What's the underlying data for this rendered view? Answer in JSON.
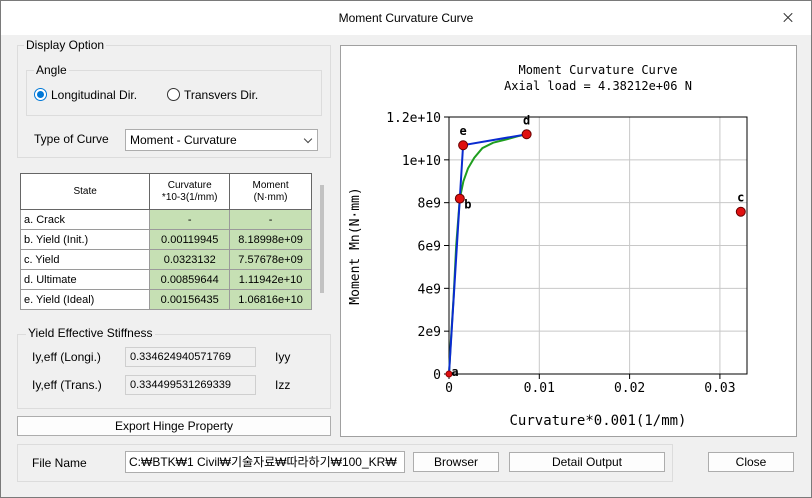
{
  "window": {
    "title": "Moment Curvature Curve"
  },
  "display_option": {
    "label": "Display Option",
    "angle_label": "Angle",
    "radio_longitudinal": "Longitudinal Dir.",
    "radio_transvers": "Transvers Dir.",
    "selected": "longitudinal",
    "type_of_curve_label": "Type of Curve",
    "type_of_curve_value": "Moment - Curvature"
  },
  "table": {
    "headers": {
      "state": "State",
      "curv_l1": "Curvature",
      "curv_l2": "*10-3(1/mm)",
      "mom_l1": "Moment",
      "mom_l2": "(N·mm)"
    },
    "rows": [
      {
        "state": "a. Crack",
        "curvature": "-",
        "moment": "-"
      },
      {
        "state": "b. Yield (Init.)",
        "curvature": "0.00119945",
        "moment": "8.18998e+09"
      },
      {
        "state": "c. Yield",
        "curvature": "0.0323132",
        "moment": "7.57678e+09"
      },
      {
        "state": "d. Ultimate",
        "curvature": "0.00859644",
        "moment": "1.11942e+10"
      },
      {
        "state": "e. Yield (Ideal)",
        "curvature": "0.00156435",
        "moment": "1.06816e+10"
      }
    ]
  },
  "stiffness": {
    "label": "Yield Effective Stiffness",
    "longi_label": "Iy,eff (Longi.)",
    "longi_value": "0.334624940571769",
    "longi_unit": "Iyy",
    "trans_label": "Iy,eff (Trans.)",
    "trans_value": "0.334499531269339",
    "trans_unit": "Izz"
  },
  "export_button": "Export Hinge Property",
  "file": {
    "label": "File Name",
    "path": "C:₩BTK₩1 Civil₩기술자료₩따라하기₩100_KR₩",
    "browser_button": "Browser",
    "detail_button": "Detail Output"
  },
  "close_button": "Close",
  "chart_data": {
    "type": "line",
    "title": "Moment Curvature Curve",
    "subtitle": "Axial load = 4.38212e+06 N",
    "xlabel": "Curvature*0.001(1/mm)",
    "ylabel": "Moment Mn(N·mm)",
    "xlim": [
      0,
      0.033
    ],
    "ylim": [
      0,
      12000000000
    ],
    "xticks": [
      0,
      0.01,
      0.02,
      0.03
    ],
    "xtick_labels": [
      "0",
      "0.01",
      "0.02",
      "0.03"
    ],
    "yticks": [
      0,
      2000000000,
      4000000000,
      6000000000,
      8000000000,
      10000000000,
      12000000000
    ],
    "ytick_labels": [
      "0",
      "2e9",
      "4e9",
      "6e9",
      "8e9",
      "1e+10",
      "1.2e+10"
    ],
    "grid": true,
    "series": [
      {
        "color": "#1f9e1f",
        "x": [
          0,
          0.0002,
          0.0005,
          0.0008,
          0.00119945,
          0.0016,
          0.0021,
          0.0028,
          0.0037,
          0.0049,
          0.0063,
          0.0076,
          0.00859644
        ],
        "y": [
          0,
          1500000000,
          3500000000,
          6000000000,
          8189980000,
          9000000000,
          9600000000,
          10100000000,
          10550000000,
          10800000000,
          10950000000,
          11100000000,
          11194200000
        ]
      },
      {
        "color": "#0a2bd0",
        "x": [
          0,
          0.00119945,
          0.00156435,
          0.00859644
        ],
        "y": [
          0,
          8189980000,
          10681600000,
          11194200000
        ]
      }
    ],
    "points": [
      {
        "label": "a",
        "x": 0,
        "y": 0
      },
      {
        "label": "b",
        "x": 0.00119945,
        "y": 8189980000
      },
      {
        "label": "c",
        "x": 0.0323132,
        "y": 7576780000
      },
      {
        "label": "d",
        "x": 0.00859644,
        "y": 11194200000
      },
      {
        "label": "e",
        "x": 0.00156435,
        "y": 10681600000
      }
    ]
  }
}
